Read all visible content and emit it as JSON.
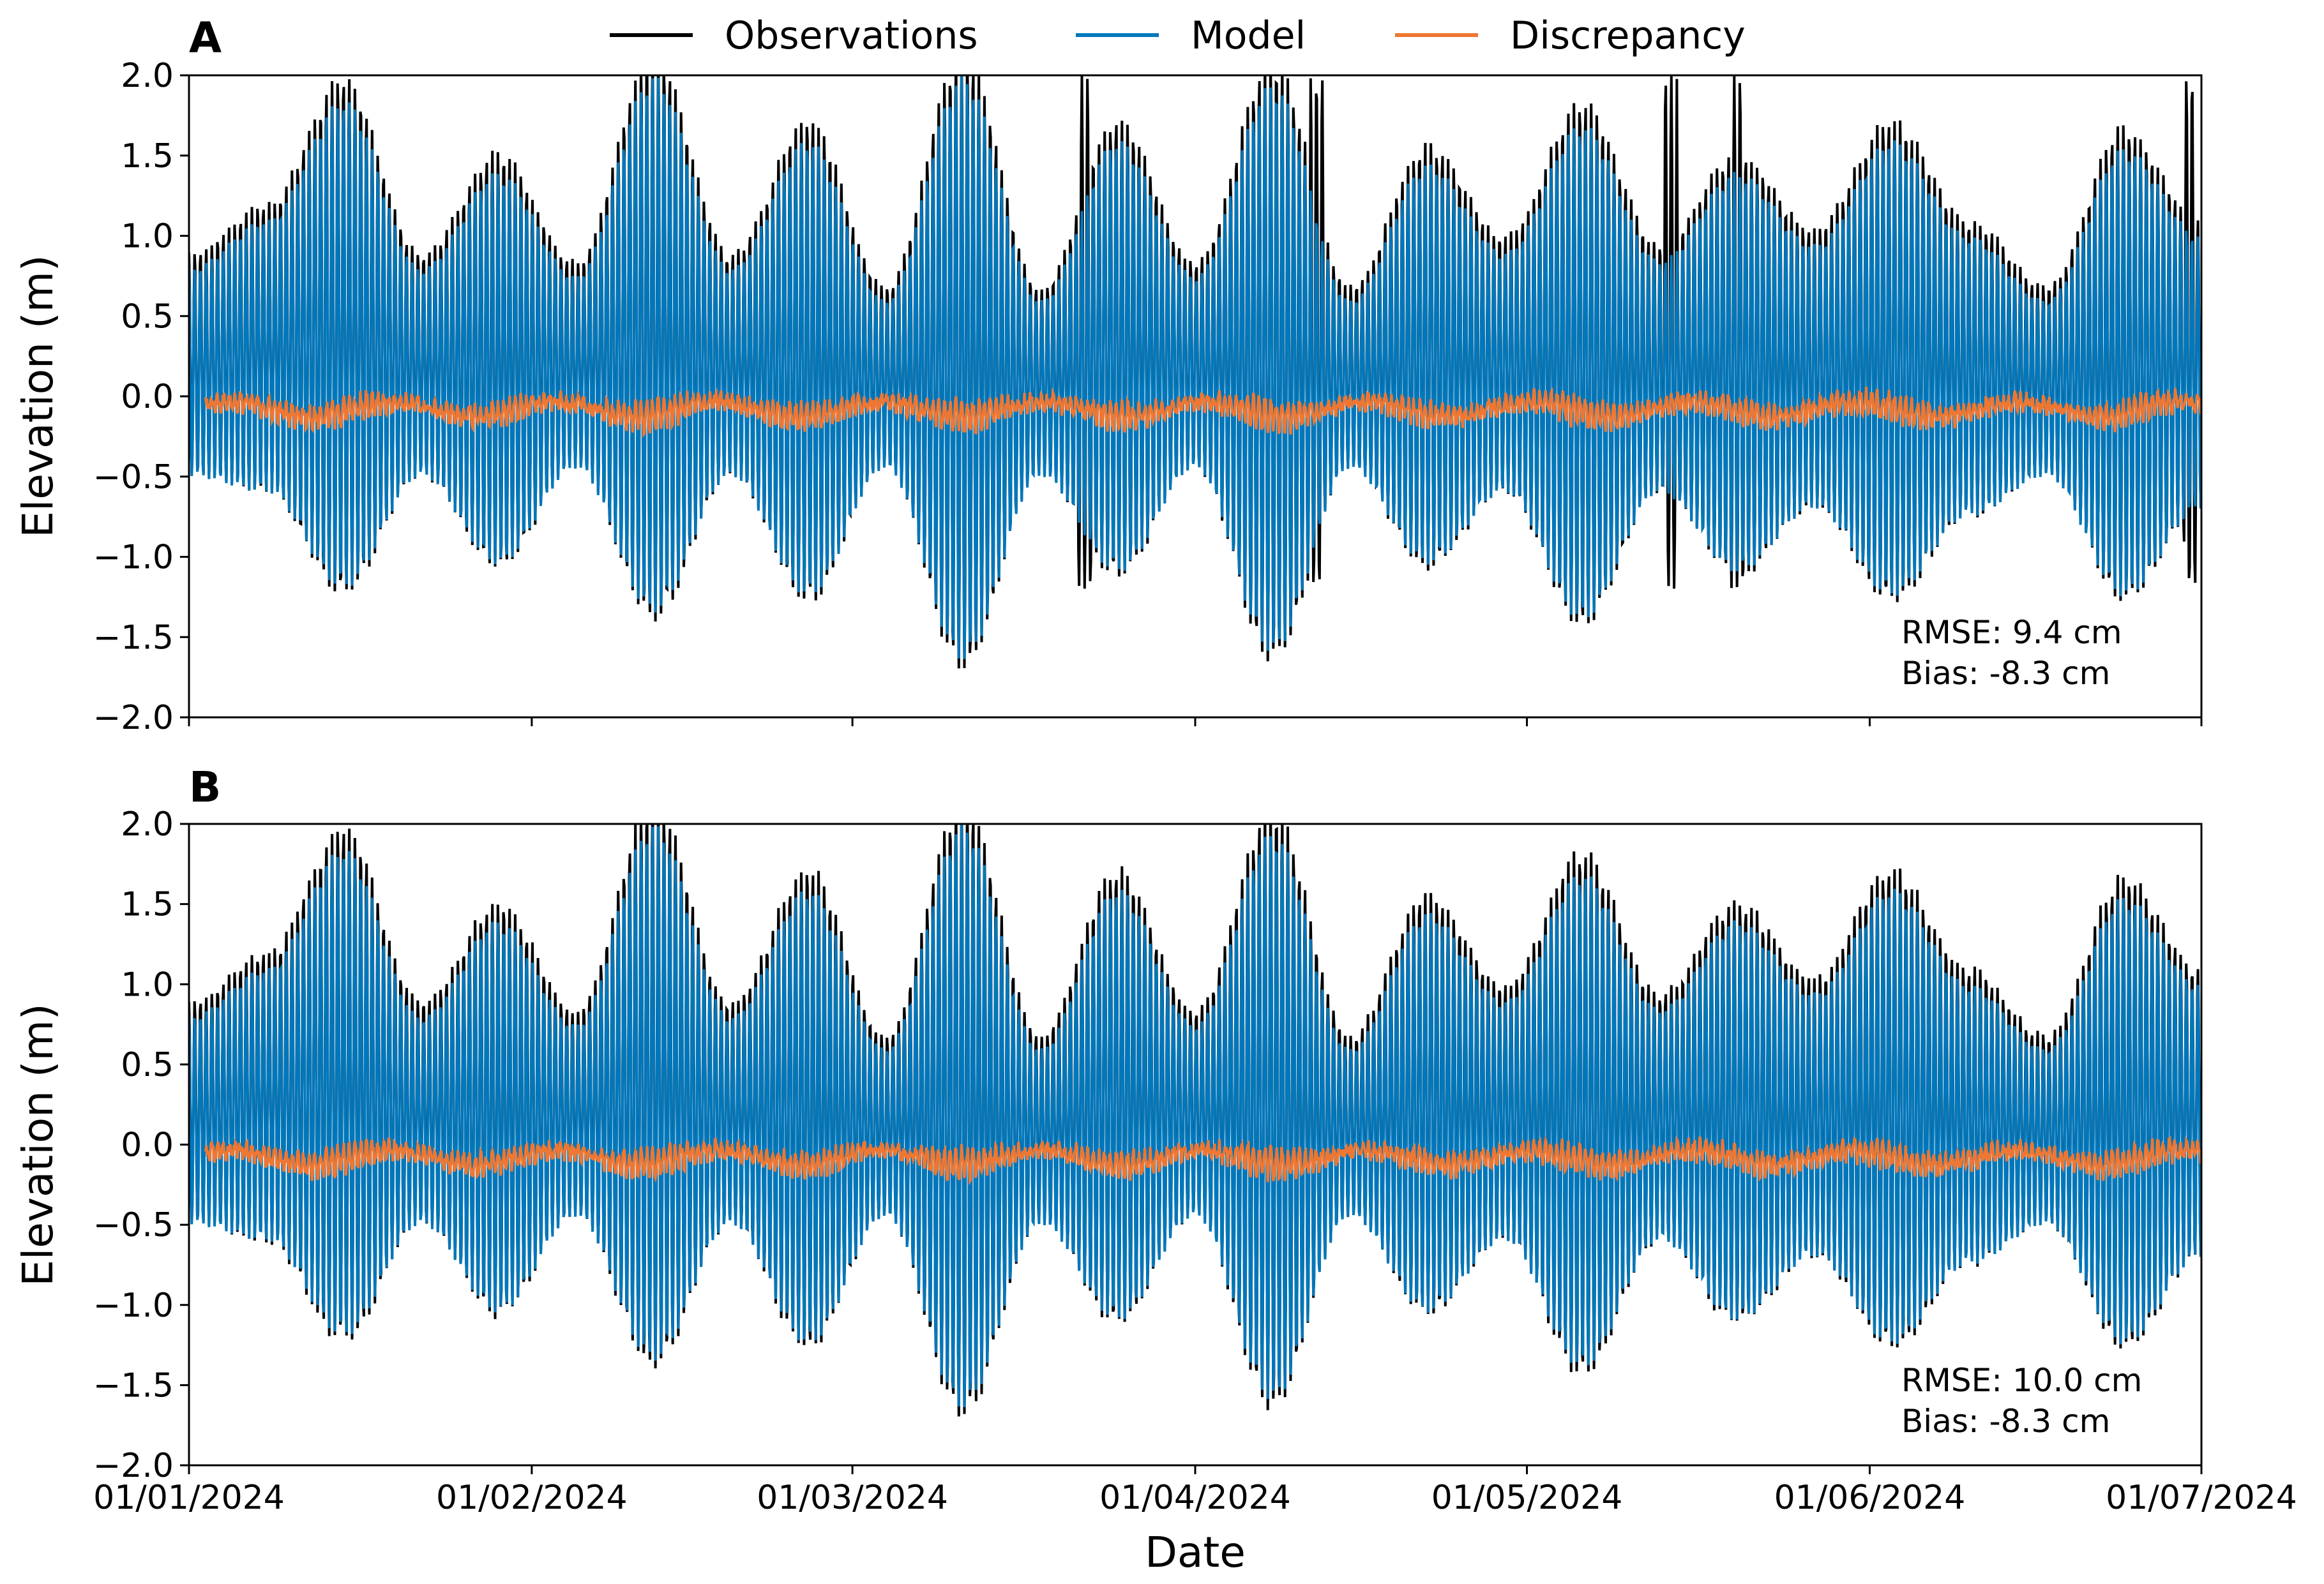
{
  "legend": [
    {
      "label": "Observations",
      "color": "#000000"
    },
    {
      "label": "Model",
      "color": "#0077bb"
    },
    {
      "label": "Discrepancy",
      "color": "#ee7733"
    }
  ],
  "x_tick_labels": [
    "01/01/2024",
    "01/02/2024",
    "01/03/2024",
    "01/04/2024",
    "01/05/2024",
    "01/06/2024",
    "01/07/2024"
  ],
  "xlabel": "Date",
  "chart_data": [
    {
      "panel": "A",
      "type": "line",
      "title": "",
      "xlabel": "",
      "ylabel": "Elevation (m)",
      "x_range": [
        "2024-01-01",
        "2024-07-01"
      ],
      "ylim": [
        -2.0,
        2.0
      ],
      "yticks": [
        -2.0,
        -1.5,
        -1.0,
        -0.5,
        0.0,
        0.5,
        1.0,
        1.5,
        2.0
      ],
      "ytick_labels": [
        "−2.0",
        "−1.5",
        "−1.0",
        "−0.5",
        "0.0",
        "0.5",
        "1.0",
        "1.5",
        "2.0"
      ],
      "xtick_days": [
        0,
        31,
        60,
        91,
        121,
        152,
        182
      ],
      "series": [
        {
          "name": "Observations",
          "description": "semidiurnal tide, spring-neap envelope"
        },
        {
          "name": "Model",
          "description": "semidiurnal tide, spring-neap envelope"
        },
        {
          "name": "Discrepancy",
          "description": "model minus observations, approx -0.08 m mean"
        }
      ],
      "envelope_day": [
        0,
        7,
        14,
        21,
        28,
        35,
        42,
        49,
        56,
        63,
        70,
        77,
        84,
        91,
        98,
        105,
        112,
        119,
        126,
        133,
        140,
        147,
        154,
        161,
        168,
        175,
        182
      ],
      "envelope_max_m": [
        0.8,
        1.1,
        1.85,
        0.8,
        1.4,
        0.75,
        2.0,
        0.8,
        1.6,
        0.6,
        2.0,
        0.6,
        1.6,
        0.75,
        1.95,
        0.6,
        1.45,
        0.9,
        1.7,
        0.85,
        1.4,
        0.95,
        1.6,
        1.0,
        0.6,
        1.55,
        1.0
      ],
      "envelope_min_m": [
        -0.5,
        -0.6,
        -1.2,
        -0.5,
        -1.05,
        -0.45,
        -1.35,
        -0.5,
        -1.25,
        -0.45,
        -1.65,
        -0.5,
        -1.1,
        -0.45,
        -1.6,
        -0.45,
        -1.05,
        -0.6,
        -1.4,
        -0.6,
        -1.1,
        -0.7,
        -1.25,
        -0.75,
        -0.5,
        -1.25,
        -0.7
      ],
      "observation_gaps_day": [
        81,
        102,
        134,
        140,
        181
      ],
      "discrepancy_mean_m": -0.08,
      "annotations": {
        "rmse": "RMSE: 9.4 cm",
        "bias": "Bias: -8.3 cm"
      }
    },
    {
      "panel": "B",
      "type": "line",
      "title": "",
      "xlabel": "Date",
      "ylabel": "Elevation (m)",
      "x_range": [
        "2024-01-01",
        "2024-07-01"
      ],
      "ylim": [
        -2.0,
        2.0
      ],
      "yticks": [
        -2.0,
        -1.5,
        -1.0,
        -0.5,
        0.0,
        0.5,
        1.0,
        1.5,
        2.0
      ],
      "ytick_labels": [
        "−2.0",
        "−1.5",
        "−1.0",
        "−0.5",
        "0.0",
        "0.5",
        "1.0",
        "1.5",
        "2.0"
      ],
      "xtick_days": [
        0,
        31,
        60,
        91,
        121,
        152,
        182
      ],
      "series": [
        {
          "name": "Observations",
          "description": "semidiurnal tide, spring-neap envelope"
        },
        {
          "name": "Model",
          "description": "semidiurnal tide, spring-neap envelope"
        },
        {
          "name": "Discrepancy",
          "description": "model minus observations, approx -0.08 m mean"
        }
      ],
      "envelope_day": [
        0,
        7,
        14,
        21,
        28,
        35,
        42,
        49,
        56,
        63,
        70,
        77,
        84,
        91,
        98,
        105,
        112,
        119,
        126,
        133,
        140,
        147,
        154,
        161,
        168,
        175,
        182
      ],
      "envelope_max_m": [
        0.8,
        1.1,
        1.85,
        0.8,
        1.4,
        0.75,
        2.0,
        0.8,
        1.6,
        0.6,
        2.0,
        0.6,
        1.6,
        0.75,
        1.95,
        0.6,
        1.45,
        0.9,
        1.7,
        0.85,
        1.4,
        0.95,
        1.6,
        1.0,
        0.6,
        1.55,
        1.0
      ],
      "envelope_min_m": [
        -0.5,
        -0.6,
        -1.2,
        -0.5,
        -1.05,
        -0.45,
        -1.35,
        -0.5,
        -1.25,
        -0.45,
        -1.65,
        -0.5,
        -1.1,
        -0.45,
        -1.6,
        -0.45,
        -1.05,
        -0.6,
        -1.4,
        -0.6,
        -1.1,
        -0.7,
        -1.25,
        -0.75,
        -0.5,
        -1.25,
        -0.7
      ],
      "observation_gaps_day": [],
      "discrepancy_mean_m": -0.08,
      "annotations": {
        "rmse": "RMSE: 10.0 cm",
        "bias": "Bias: -8.3 cm"
      }
    }
  ]
}
